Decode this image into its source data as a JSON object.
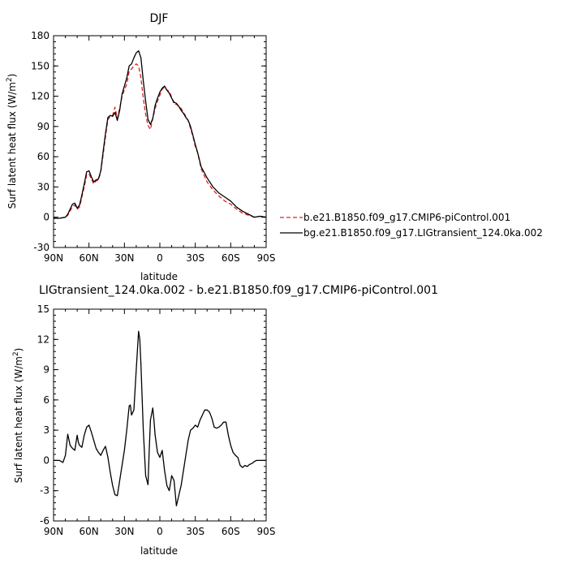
{
  "chart_data": [
    {
      "type": "line",
      "title": "DJF",
      "xlabel": "latitude",
      "ylabel": "Surf latent heat flux (W/m²)",
      "xlim": [
        90,
        -90
      ],
      "ylim": [
        -30,
        180
      ],
      "xticks": [
        {
          "value": 90,
          "label": "90N"
        },
        {
          "value": 60,
          "label": "60N"
        },
        {
          "value": 30,
          "label": "30N"
        },
        {
          "value": 0,
          "label": "0"
        },
        {
          "value": -30,
          "label": "30S"
        },
        {
          "value": -60,
          "label": "60S"
        },
        {
          "value": -90,
          "label": "90S"
        }
      ],
      "yticks": [
        {
          "value": -30,
          "label": "-30"
        },
        {
          "value": 0,
          "label": "0"
        },
        {
          "value": 30,
          "label": "30"
        },
        {
          "value": 60,
          "label": "60"
        },
        {
          "value": 90,
          "label": "90"
        },
        {
          "value": 120,
          "label": "120"
        },
        {
          "value": 150,
          "label": "150"
        },
        {
          "value": 180,
          "label": "180"
        }
      ],
      "grid": false,
      "legend_position": "right",
      "series": [
        {
          "name": "b.e21.B1850.f09_g17.CMIP6-piControl.001",
          "color": "#e02020",
          "dash": "dashed",
          "x": [
            90,
            85,
            80,
            78,
            76,
            74,
            72,
            70,
            68,
            66,
            64,
            62,
            60,
            58,
            56,
            54,
            52,
            50,
            48,
            46,
            44,
            42,
            40,
            38,
            36,
            34,
            32,
            30,
            28,
            26,
            24,
            22,
            20,
            18,
            16,
            14,
            12,
            10,
            8,
            6,
            4,
            2,
            0,
            -2,
            -4,
            -6,
            -8,
            -10,
            -12,
            -14,
            -16,
            -18,
            -20,
            -22,
            -24,
            -26,
            -28,
            -30,
            -32,
            -35,
            -40,
            -45,
            -50,
            -55,
            -60,
            -65,
            -70,
            -75,
            -80,
            -85,
            -90
          ],
          "y": [
            -1,
            -1,
            0,
            2,
            6,
            11,
            12,
            8,
            10,
            20,
            30,
            42,
            43,
            38,
            33,
            36,
            37,
            45,
            62,
            80,
            97,
            100,
            101,
            109,
            98,
            108,
            120,
            126,
            132,
            145,
            147,
            150,
            152,
            150,
            138,
            118,
            102,
            91,
            87,
            98,
            108,
            115,
            121,
            127,
            129,
            126,
            125,
            119,
            112,
            112,
            110,
            108,
            104,
            100,
            96,
            88,
            80,
            70,
            64,
            48,
            35,
            27,
            21,
            16,
            13,
            8,
            4,
            2,
            0,
            1,
            0
          ]
        },
        {
          "name": "bg.e21.B1850.f09_g17.LIGtransient_124.0ka.002",
          "color": "#000000",
          "dash": "solid",
          "x": [
            90,
            85,
            80,
            78,
            76,
            74,
            72,
            70,
            68,
            66,
            64,
            62,
            60,
            58,
            56,
            54,
            52,
            50,
            48,
            46,
            44,
            42,
            40,
            38,
            36,
            34,
            32,
            30,
            28,
            26,
            24,
            22,
            20,
            18,
            16,
            14,
            12,
            10,
            8,
            6,
            4,
            2,
            0,
            -2,
            -4,
            -6,
            -8,
            -10,
            -12,
            -14,
            -16,
            -18,
            -20,
            -22,
            -24,
            -26,
            -28,
            -30,
            -32,
            -35,
            -40,
            -45,
            -50,
            -55,
            -60,
            -65,
            -70,
            -75,
            -80,
            -85,
            -90
          ],
          "y": [
            -1,
            -1,
            0,
            3,
            8,
            13,
            14,
            9,
            12,
            22,
            33,
            45,
            46,
            40,
            35,
            37,
            38,
            46,
            65,
            83,
            99,
            101,
            100,
            104,
            96,
            106,
            122,
            130,
            138,
            150,
            152,
            158,
            163,
            165,
            158,
            135,
            115,
            97,
            92,
            98,
            111,
            118,
            124,
            128,
            130,
            126,
            123,
            118,
            114,
            113,
            110,
            106,
            103,
            99,
            96,
            90,
            81,
            72,
            64,
            50,
            39,
            30,
            24,
            20,
            16,
            10,
            6,
            3,
            0,
            1,
            0
          ]
        }
      ]
    },
    {
      "type": "line",
      "title": "LIGtransient_124.0ka.002 - b.e21.B1850.f09_g17.CMIP6-piControl.001",
      "xlabel": "latitude",
      "ylabel": "Surf latent heat flux (W/m²)",
      "xlim": [
        90,
        -90
      ],
      "ylim": [
        -6,
        15
      ],
      "xticks": [
        {
          "value": 90,
          "label": "90N"
        },
        {
          "value": 60,
          "label": "60N"
        },
        {
          "value": 30,
          "label": "30N"
        },
        {
          "value": 0,
          "label": "0"
        },
        {
          "value": -30,
          "label": "30S"
        },
        {
          "value": -60,
          "label": "60S"
        },
        {
          "value": -90,
          "label": "90S"
        }
      ],
      "yticks": [
        {
          "value": -6,
          "label": "-6"
        },
        {
          "value": -3,
          "label": "-3"
        },
        {
          "value": 0,
          "label": "0"
        },
        {
          "value": 3,
          "label": "3"
        },
        {
          "value": 6,
          "label": "6"
        },
        {
          "value": 9,
          "label": "9"
        },
        {
          "value": 12,
          "label": "12"
        },
        {
          "value": 15,
          "label": "15"
        }
      ],
      "grid": false,
      "series": [
        {
          "color": "#000000",
          "dash": "solid",
          "x": [
            90,
            85,
            82,
            80,
            78,
            76,
            74,
            72,
            70,
            69,
            68,
            66,
            64,
            62,
            60,
            58,
            56,
            54,
            52,
            50,
            48,
            46,
            44,
            42,
            40,
            38,
            36,
            34,
            32,
            30,
            28,
            26,
            25,
            24,
            22,
            20,
            18,
            17,
            16,
            14,
            12,
            10,
            9,
            8,
            6,
            5,
            4,
            2,
            0,
            -2,
            -4,
            -6,
            -8,
            -10,
            -12,
            -14,
            -16,
            -17,
            -18,
            -20,
            -22,
            -24,
            -26,
            -28,
            -30,
            -32,
            -34,
            -36,
            -38,
            -40,
            -42,
            -44,
            -46,
            -48,
            -50,
            -52,
            -54,
            -56,
            -58,
            -60,
            -62,
            -64,
            -66,
            -68,
            -70,
            -72,
            -74,
            -76,
            -78,
            -80,
            -82,
            -84,
            -86,
            -88,
            -90
          ],
          "y": [
            0,
            0,
            -0.2,
            0.5,
            2.6,
            1.5,
            1.2,
            1.0,
            2.5,
            1.8,
            1.5,
            1.3,
            2.5,
            3.3,
            3.5,
            2.8,
            2.0,
            1.2,
            0.8,
            0.5,
            1.0,
            1.4,
            0.3,
            -1.2,
            -2.5,
            -3.4,
            -3.5,
            -2.0,
            -0.5,
            1.0,
            3.0,
            5.4,
            5.5,
            4.5,
            5.0,
            9.0,
            12.8,
            12.0,
            9.5,
            3.0,
            -1.5,
            -2.4,
            1.0,
            4.0,
            5.2,
            4.0,
            2.5,
            0.8,
            0.3,
            1.0,
            -1.0,
            -2.5,
            -3.0,
            -1.5,
            -2.0,
            -4.5,
            -3.5,
            -3.0,
            -2.5,
            -1.0,
            0.5,
            2.0,
            3.0,
            3.2,
            3.5,
            3.3,
            4.0,
            4.5,
            5.0,
            5.0,
            4.8,
            4.2,
            3.3,
            3.2,
            3.3,
            3.5,
            3.8,
            3.8,
            2.5,
            1.5,
            0.8,
            0.5,
            0.3,
            -0.5,
            -0.7,
            -0.5,
            -0.6,
            -0.4,
            -0.3,
            -0.1,
            0,
            0,
            0,
            0,
            0
          ]
        }
      ]
    }
  ]
}
